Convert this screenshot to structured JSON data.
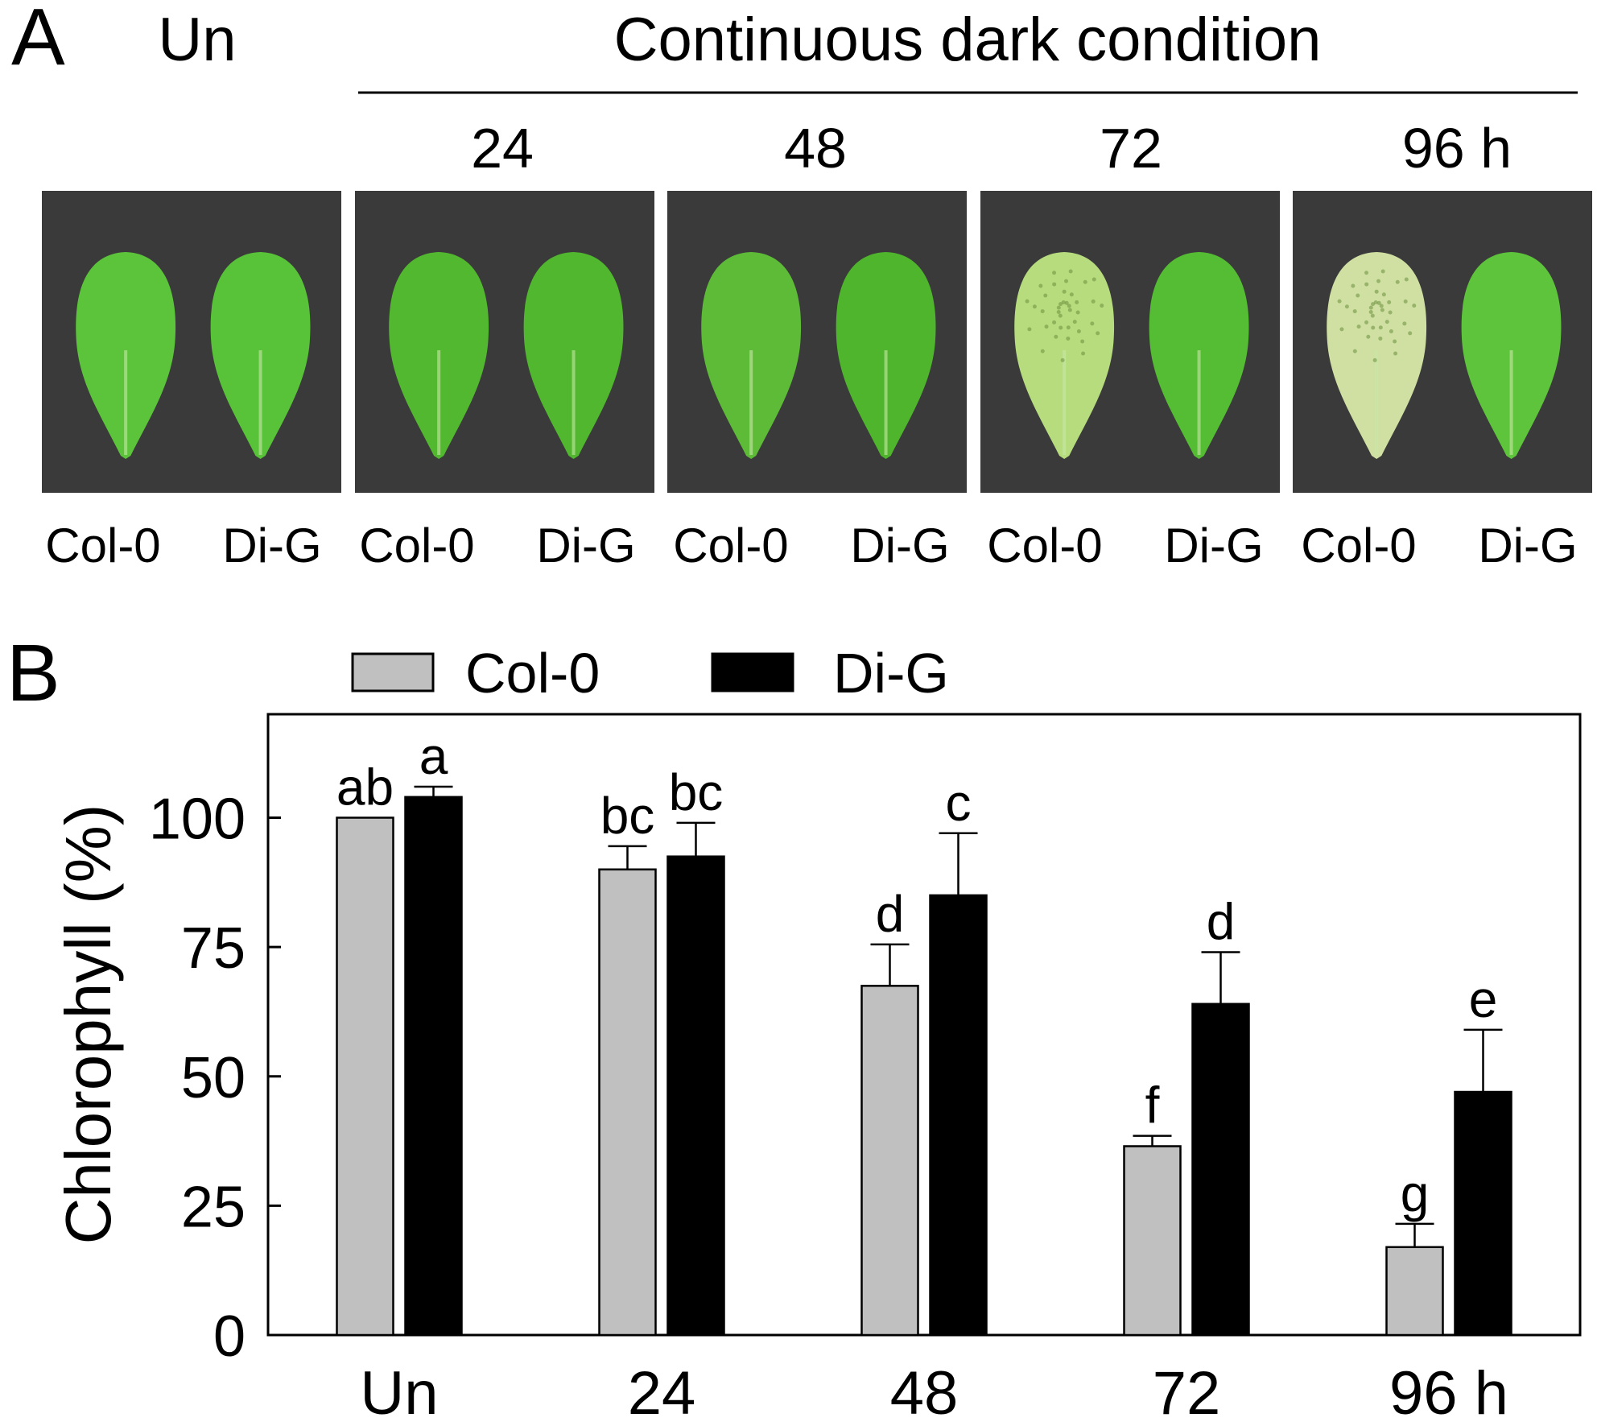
{
  "panel_a": {
    "panel_label": "A",
    "untreated_label": "Un",
    "condition_title": "Continuous dark condition",
    "timepoints": [
      {
        "label": "24"
      },
      {
        "label": "48"
      },
      {
        "label": "72"
      },
      {
        "label": "96 h"
      }
    ],
    "photos": [
      {
        "col0_color": "#5cc43a",
        "dig_color": "#58c238",
        "col0_yellowing": 0.0,
        "dig_yellowing": 0.0
      },
      {
        "col0_color": "#52b82f",
        "dig_color": "#50b72e",
        "col0_yellowing": 0.0,
        "dig_yellowing": 0.0
      },
      {
        "col0_color": "#5dbb38",
        "dig_color": "#4fb52d",
        "col0_yellowing": 0.15,
        "dig_yellowing": 0.0
      },
      {
        "col0_color": "#b6dc7e",
        "dig_color": "#55bd33",
        "col0_yellowing": 0.7,
        "dig_yellowing": 0.0
      },
      {
        "col0_color": "#cfe0a2",
        "dig_color": "#5ec43c",
        "col0_yellowing": 0.9,
        "dig_yellowing": 0.0
      }
    ],
    "genotype_labels": {
      "col0": "Col-0",
      "dig": "Di-G"
    }
  },
  "panel_b": {
    "panel_label": "B"
  },
  "colors": {
    "col0_bar": "#c0c0c0",
    "dig_bar": "#000000",
    "photo_background": "#3a3a3a"
  },
  "chart_data": {
    "type": "bar",
    "categories": [
      "Un",
      "24",
      "48",
      "72",
      "96 h"
    ],
    "ylabel": "Chlorophyll (%)",
    "xlabel": "",
    "ylim": [
      0,
      120
    ],
    "yticks": [
      0,
      25,
      50,
      75,
      100
    ],
    "grid": false,
    "legend_position": "top-center",
    "series": [
      {
        "name": "Col-0",
        "color": "#c0c0c0",
        "values": [
          100,
          90,
          67.5,
          36.5,
          17
        ],
        "errors": [
          0,
          4.5,
          8,
          2,
          4.5
        ],
        "letters": [
          "ab",
          "bc",
          "d",
          "f",
          "g"
        ]
      },
      {
        "name": "Di-G",
        "color": "#000000",
        "values": [
          104,
          92.5,
          85,
          64,
          47
        ],
        "errors": [
          2,
          6.5,
          12,
          10,
          12
        ],
        "letters": [
          "a",
          "bc",
          "c",
          "d",
          "e"
        ]
      }
    ]
  }
}
